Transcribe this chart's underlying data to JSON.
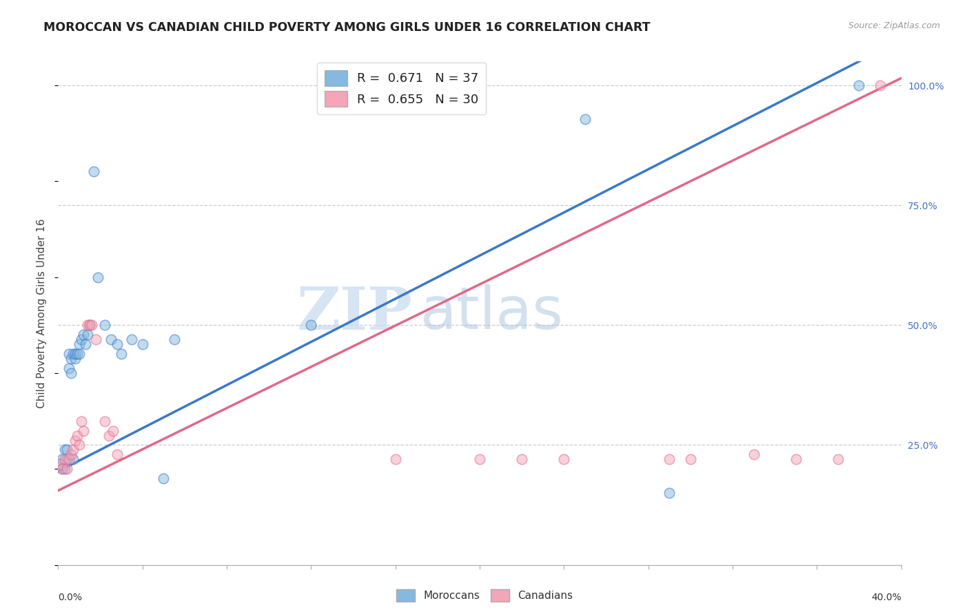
{
  "title": "MOROCCAN VS CANADIAN CHILD POVERTY AMONG GIRLS UNDER 16 CORRELATION CHART",
  "source": "Source: ZipAtlas.com",
  "ylabel": "Child Poverty Among Girls Under 16",
  "watermark_zip": "ZIP",
  "watermark_atlas": "atlas",
  "legend_r1": "R =  0.671   N = 37",
  "legend_r2": "R =  0.655   N = 30",
  "moroccan_color": "#85b9e0",
  "canadian_color": "#f4a5b8",
  "moroccan_line_color": "#3a78c9",
  "canadian_line_color": "#e06888",
  "xmin": 0.0,
  "xmax": 0.4,
  "ymin": 0.0,
  "ymax": 1.05,
  "moroccan_x": [
    0.001,
    0.002,
    0.002,
    0.003,
    0.003,
    0.004,
    0.004,
    0.005,
    0.005,
    0.006,
    0.006,
    0.007,
    0.007,
    0.008,
    0.008,
    0.009,
    0.01,
    0.01,
    0.011,
    0.012,
    0.013,
    0.014,
    0.015,
    0.017,
    0.019,
    0.022,
    0.025,
    0.028,
    0.03,
    0.035,
    0.04,
    0.05,
    0.055,
    0.12,
    0.25,
    0.29,
    0.38
  ],
  "moroccan_y": [
    0.21,
    0.22,
    0.2,
    0.24,
    0.2,
    0.24,
    0.22,
    0.44,
    0.41,
    0.43,
    0.4,
    0.44,
    0.22,
    0.43,
    0.44,
    0.44,
    0.46,
    0.44,
    0.47,
    0.48,
    0.46,
    0.48,
    0.5,
    0.82,
    0.6,
    0.5,
    0.47,
    0.46,
    0.44,
    0.47,
    0.46,
    0.18,
    0.47,
    0.5,
    0.93,
    0.15,
    1.0
  ],
  "canadian_x": [
    0.001,
    0.002,
    0.003,
    0.004,
    0.005,
    0.006,
    0.007,
    0.008,
    0.009,
    0.01,
    0.011,
    0.012,
    0.014,
    0.015,
    0.016,
    0.018,
    0.022,
    0.024,
    0.026,
    0.028,
    0.16,
    0.2,
    0.22,
    0.24,
    0.29,
    0.3,
    0.33,
    0.35,
    0.37,
    0.39
  ],
  "canadian_y": [
    0.21,
    0.2,
    0.22,
    0.2,
    0.22,
    0.23,
    0.24,
    0.26,
    0.27,
    0.25,
    0.3,
    0.28,
    0.5,
    0.5,
    0.5,
    0.47,
    0.3,
    0.27,
    0.28,
    0.23,
    0.22,
    0.22,
    0.22,
    0.22,
    0.22,
    0.22,
    0.23,
    0.22,
    0.22,
    1.0
  ],
  "moroccan_slope": 2.25,
  "moroccan_intercept": 0.195,
  "canadian_slope": 2.15,
  "canadian_intercept": 0.155,
  "right_yticks": [
    0.0,
    0.25,
    0.5,
    0.75,
    1.0
  ],
  "right_yticklabels": [
    "",
    "25.0%",
    "50.0%",
    "75.0%",
    "100.0%"
  ],
  "xtick_labels": [
    "0.0%",
    "",
    "",
    "",
    "",
    "",
    "",
    "",
    "",
    "",
    "40.0%"
  ],
  "background_color": "#ffffff",
  "grid_color": "#cccccc",
  "marker_size": 110,
  "marker_alpha": 0.5,
  "marker_linewidth": 1.2
}
